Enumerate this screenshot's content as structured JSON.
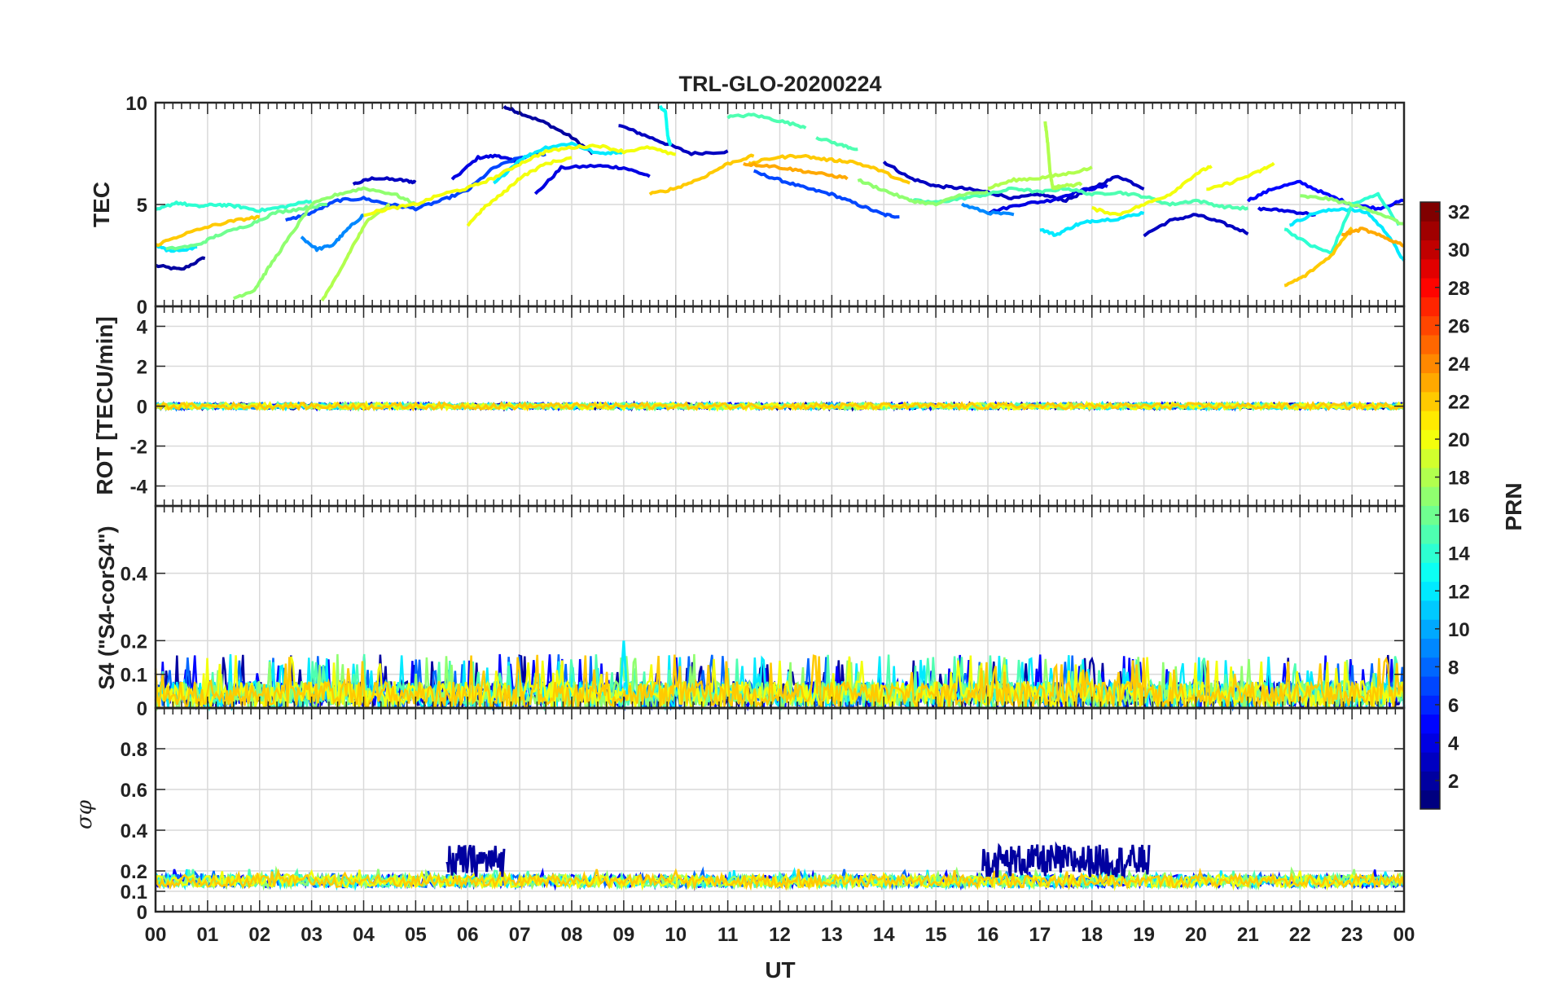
{
  "figure": {
    "title": "TRL-GLO-20200224",
    "xlabel": "UT",
    "x_tick_labels": [
      "00",
      "01",
      "02",
      "03",
      "04",
      "05",
      "06",
      "07",
      "08",
      "09",
      "10",
      "11",
      "12",
      "13",
      "14",
      "15",
      "16",
      "17",
      "18",
      "19",
      "20",
      "21",
      "22",
      "23",
      "00"
    ]
  },
  "chart_data": [
    {
      "type": "line",
      "title": "TRL-GLO-20200224",
      "ylabel": "TEC",
      "xlabel": "UT",
      "xlim": [
        0,
        24
      ],
      "ylim": [
        0,
        10
      ],
      "yticks": [
        0,
        5,
        10
      ],
      "y_tick_labels": [
        "0",
        "5",
        "10"
      ],
      "grid": true,
      "series": [
        {
          "name": "PRN 2",
          "prn": 2,
          "x": [
            0.0,
            0.5,
            0.95
          ],
          "y": [
            2.0,
            1.8,
            2.4
          ]
        },
        {
          "name": "PRN 3",
          "prn": 3,
          "x": [
            3.8,
            4.2,
            4.7,
            5.0
          ],
          "y": [
            6.0,
            6.3,
            6.2,
            6.1
          ]
        },
        {
          "name": "PRN 2",
          "prn": 2,
          "x": [
            6.7,
            7.0,
            7.5,
            8.0,
            8.4
          ],
          "y": [
            9.8,
            9.5,
            9.0,
            8.3,
            7.5
          ]
        },
        {
          "name": "PRN 4",
          "prn": 4,
          "x": [
            5.7,
            6.2,
            6.6,
            7.0
          ],
          "y": [
            6.2,
            7.3,
            7.4,
            7.0
          ]
        },
        {
          "name": "PRN 3",
          "prn": 3,
          "x": [
            8.9,
            9.3,
            9.8,
            10.3,
            11.0
          ],
          "y": [
            8.9,
            8.5,
            8.0,
            7.5,
            7.6
          ]
        },
        {
          "name": "PRN 4",
          "prn": 4,
          "x": [
            7.3,
            7.8,
            8.5,
            9.0,
            9.5
          ],
          "y": [
            5.5,
            6.8,
            6.9,
            6.8,
            6.4
          ]
        },
        {
          "name": "PRN 7",
          "prn": 7,
          "x": [
            11.5,
            12.0,
            12.5,
            13.0,
            13.5,
            14.0,
            14.3
          ],
          "y": [
            6.6,
            6.2,
            5.8,
            5.5,
            5.0,
            4.5,
            4.4
          ]
        },
        {
          "name": "PRN 3",
          "prn": 3,
          "x": [
            14.0,
            14.5,
            15.0,
            15.5,
            16.0,
            16.5,
            17.0,
            17.5,
            18.0,
            18.5,
            19.0
          ],
          "y": [
            7.1,
            6.3,
            5.9,
            5.8,
            5.6,
            5.3,
            5.5,
            5.2,
            5.8,
            6.4,
            5.8
          ]
        },
        {
          "name": "PRN 4",
          "prn": 4,
          "x": [
            16.0,
            16.6,
            17.2,
            17.8,
            18.3
          ],
          "y": [
            4.6,
            5.0,
            5.2,
            5.7,
            5.9
          ]
        },
        {
          "name": "PRN 3",
          "prn": 3,
          "x": [
            19.0,
            19.5,
            20.0,
            20.5,
            21.0
          ],
          "y": [
            3.5,
            4.2,
            4.5,
            4.1,
            3.6
          ]
        },
        {
          "name": "PRN 5",
          "prn": 5,
          "x": [
            21.0,
            21.5,
            22.0,
            22.5,
            23.0,
            23.5,
            24.0
          ],
          "y": [
            5.2,
            5.8,
            6.1,
            5.5,
            5.0,
            4.8,
            5.2
          ]
        },
        {
          "name": "PRN 4",
          "prn": 4,
          "x": [
            21.2,
            21.7,
            22.3
          ],
          "y": [
            4.8,
            4.7,
            4.5
          ]
        },
        {
          "name": "PRN 7",
          "prn": 7,
          "x": [
            2.5,
            3.0,
            3.5,
            4.0,
            4.5,
            5.0,
            5.5,
            6.0,
            6.5,
            7.0,
            7.5
          ],
          "y": [
            4.2,
            4.6,
            5.2,
            5.3,
            5.0,
            4.8,
            5.2,
            5.7,
            6.8,
            7.3,
            7.5
          ]
        },
        {
          "name": "PRN 9",
          "prn": 9,
          "x": [
            2.8,
            3.1,
            3.4,
            3.7,
            4.0
          ],
          "y": [
            3.4,
            2.8,
            3.0,
            3.8,
            4.5
          ]
        },
        {
          "name": "PRN 9",
          "prn": 9,
          "x": [
            15.5,
            16.0,
            16.5
          ],
          "y": [
            5.0,
            4.6,
            4.5
          ]
        },
        {
          "name": "PRN 12",
          "prn": 12,
          "x": [
            6.5,
            7.0,
            7.5,
            8.0,
            8.5,
            9.0
          ],
          "y": [
            6.0,
            7.2,
            7.8,
            8.0,
            7.5,
            7.6
          ]
        },
        {
          "name": "PRN 12",
          "prn": 12,
          "x": [
            17.0,
            17.3,
            17.7,
            18.0,
            18.5,
            19.0
          ],
          "y": [
            3.8,
            3.5,
            4.0,
            4.2,
            4.3,
            4.6
          ]
        },
        {
          "name": "PRN 12",
          "prn": 12,
          "x": [
            21.8,
            22.3,
            22.8,
            23.3,
            23.7,
            24.0
          ],
          "y": [
            4.0,
            4.6,
            4.8,
            4.6,
            3.5,
            2.2
          ]
        },
        {
          "name": "PRN 12",
          "prn": 12,
          "x": [
            0.0,
            0.3,
            0.8
          ],
          "y": [
            3.0,
            2.7,
            2.9
          ]
        },
        {
          "name": "PRN 13",
          "prn": 13,
          "x": [
            9.7,
            9.8,
            9.85,
            9.9
          ],
          "y": [
            9.8,
            9.6,
            8.3,
            7.9
          ]
        },
        {
          "name": "PRN 14",
          "prn": 14,
          "x": [
            0.0,
            0.4,
            0.8,
            1.2,
            1.6,
            2.0,
            2.5,
            3.0
          ],
          "y": [
            4.7,
            5.1,
            4.9,
            5.0,
            4.9,
            4.7,
            4.9,
            5.2
          ]
        },
        {
          "name": "PRN 14",
          "prn": 14,
          "x": [
            21.7,
            22.2,
            22.6,
            23.0,
            23.5,
            23.9
          ],
          "y": [
            3.8,
            3.0,
            2.6,
            5.0,
            5.5,
            4.0
          ]
        },
        {
          "name": "PRN 15",
          "prn": 15,
          "x": [
            11.0,
            11.5,
            12.0,
            12.5
          ],
          "y": [
            9.3,
            9.4,
            9.1,
            8.8
          ]
        },
        {
          "name": "PRN 15",
          "prn": 15,
          "x": [
            12.7,
            13.2,
            13.5
          ],
          "y": [
            8.3,
            7.9,
            7.7
          ]
        },
        {
          "name": "PRN 15",
          "prn": 15,
          "x": [
            14.5,
            15.0,
            15.5,
            16.0,
            16.5,
            17.0,
            17.5,
            18.0,
            18.5,
            19.0,
            19.5,
            20.0,
            20.5,
            21.0
          ],
          "y": [
            5.2,
            5.1,
            5.3,
            5.5,
            5.8,
            5.6,
            5.8,
            5.5,
            5.6,
            5.4,
            5.0,
            5.2,
            4.9,
            4.8
          ]
        },
        {
          "name": "PRN 16",
          "prn": 16,
          "x": [
            0.2,
            0.8,
            1.2,
            1.8,
            2.3,
            2.8,
            3.3
          ],
          "y": [
            2.8,
            3.0,
            3.5,
            4.0,
            4.6,
            4.8,
            5.0
          ]
        },
        {
          "name": "PRN 17",
          "prn": 17,
          "x": [
            1.5,
            1.9,
            2.2,
            2.6,
            3.0,
            3.5,
            4.0,
            4.6,
            5.0
          ],
          "y": [
            0.4,
            0.8,
            2.0,
            3.5,
            5.0,
            5.5,
            5.8,
            5.5,
            5.0
          ]
        },
        {
          "name": "PRN 17",
          "prn": 17,
          "x": [
            13.5,
            14.0,
            14.5,
            15.0,
            15.5,
            16.0
          ],
          "y": [
            6.2,
            5.7,
            5.2,
            5.0,
            5.5,
            5.6
          ]
        },
        {
          "name": "PRN 17",
          "prn": 17,
          "x": [
            22.0,
            22.5,
            23.0,
            23.5,
            24.0
          ],
          "y": [
            5.4,
            5.3,
            5.0,
            4.6,
            4.0
          ]
        },
        {
          "name": "PRN 18",
          "prn": 18,
          "x": [
            3.2,
            3.5,
            3.8,
            4.1,
            4.5
          ],
          "y": [
            0.3,
            1.5,
            3.0,
            4.3,
            5.0
          ]
        },
        {
          "name": "PRN 18",
          "prn": 18,
          "x": [
            16.0,
            16.5,
            17.0,
            17.5,
            18.0
          ],
          "y": [
            5.8,
            6.2,
            6.3,
            6.5,
            6.8
          ]
        },
        {
          "name": "PRN 18",
          "prn": 18,
          "x": [
            17.1,
            17.15,
            17.2,
            17.25,
            17.4,
            17.8
          ],
          "y": [
            9.1,
            8.0,
            6.5,
            5.8,
            5.9,
            6.0
          ]
        },
        {
          "name": "PRN 20",
          "prn": 20,
          "x": [
            4.0,
            4.5,
            5.0,
            5.5,
            6.0,
            6.5,
            7.0,
            7.5,
            8.0,
            8.5,
            9.0,
            9.5,
            10.0
          ],
          "y": [
            4.5,
            4.8,
            5.0,
            5.5,
            5.8,
            6.3,
            7.0,
            7.6,
            7.8,
            7.9,
            7.6,
            7.8,
            7.4
          ]
        },
        {
          "name": "PRN 20",
          "prn": 20,
          "x": [
            6.0,
            6.3,
            6.7,
            7.0,
            7.5,
            8.0
          ],
          "y": [
            4.0,
            4.8,
            5.6,
            6.3,
            7.0,
            7.3
          ]
        },
        {
          "name": "PRN 20",
          "prn": 20,
          "x": [
            18.0,
            18.5,
            19.0,
            19.5,
            20.0,
            20.3
          ],
          "y": [
            4.8,
            4.5,
            5.0,
            5.5,
            6.5,
            6.9
          ]
        },
        {
          "name": "PRN 20",
          "prn": 20,
          "x": [
            20.2,
            20.7,
            21.2,
            21.5
          ],
          "y": [
            5.7,
            6.1,
            6.6,
            7.0
          ]
        },
        {
          "name": "PRN 22",
          "prn": 22,
          "x": [
            0.0,
            0.5,
            1.0,
            1.5,
            2.0
          ],
          "y": [
            3.0,
            3.5,
            3.9,
            4.2,
            4.4
          ]
        },
        {
          "name": "PRN 22",
          "prn": 22,
          "x": [
            9.5,
            10.0,
            10.5,
            11.0,
            11.5
          ],
          "y": [
            5.5,
            5.8,
            6.3,
            7.0,
            7.4
          ]
        },
        {
          "name": "PRN 22",
          "prn": 22,
          "x": [
            11.4,
            11.9,
            12.4,
            12.9,
            13.4,
            13.9,
            14.5
          ],
          "y": [
            7.0,
            7.3,
            7.4,
            7.2,
            7.1,
            6.7,
            6.0
          ]
        },
        {
          "name": "PRN 22",
          "prn": 22,
          "x": [
            21.7,
            22.1,
            22.6,
            23.0
          ],
          "y": [
            1.0,
            1.5,
            2.5,
            3.9
          ]
        },
        {
          "name": "PRN 23",
          "prn": 23,
          "x": [
            11.3,
            11.8,
            12.3,
            12.8,
            13.3
          ],
          "y": [
            7.0,
            6.9,
            6.7,
            6.5,
            6.3
          ]
        },
        {
          "name": "PRN 23",
          "prn": 23,
          "x": [
            22.8,
            23.2,
            23.6,
            24.0
          ],
          "y": [
            3.5,
            3.8,
            3.4,
            3.0
          ]
        }
      ]
    },
    {
      "type": "line",
      "ylabel": "ROT [TECU/min]",
      "xlabel": "UT",
      "xlim": [
        0,
        24
      ],
      "ylim": [
        -5,
        5
      ],
      "yticks": [
        -4,
        -2,
        0,
        2,
        4
      ],
      "y_tick_labels": [
        "-4",
        "-2",
        "0",
        "2",
        "4"
      ],
      "grid": true,
      "description_of_series": "all PRNs fluctuate within about ±0.25 TECU/min around 0 over the full day",
      "band": {
        "center": 0,
        "amplitude": 0.25
      }
    },
    {
      "type": "line",
      "ylabel": "S4 (\"S4-corS4\")",
      "xlabel": "UT",
      "xlim": [
        0,
        24
      ],
      "ylim": [
        0,
        0.6
      ],
      "yticks": [
        0,
        0.1,
        0.2,
        0.4
      ],
      "y_tick_labels": [
        "0",
        "0.1",
        "0.2",
        "0.4"
      ],
      "grid": true,
      "band": {
        "min": 0.0,
        "typical_max": 0.1,
        "peak": 0.2,
        "peak_at_ut": 9.0
      }
    },
    {
      "type": "line",
      "ylabel": "σφ",
      "xlabel": "UT",
      "xlim": [
        0,
        24
      ],
      "ylim": [
        0,
        1.0
      ],
      "yticks": [
        0,
        0.1,
        0.2,
        0.4,
        0.6,
        0.8
      ],
      "y_tick_labels": [
        "0",
        "0.1",
        "0.2",
        "0.4",
        "0.6",
        "0.8"
      ],
      "grid": true,
      "baseline": {
        "min": 0.12,
        "max": 0.18
      },
      "enhancements": [
        {
          "prn": 2,
          "ut_start": 5.6,
          "ut_end": 6.7,
          "peak": 0.33
        },
        {
          "prn": 2,
          "ut_start": 15.9,
          "ut_end": 19.1,
          "peak": 0.33
        }
      ]
    }
  ],
  "colorbar": {
    "label": "PRN",
    "min": 1,
    "max": 32,
    "tick_labels": [
      "2",
      "4",
      "6",
      "8",
      "10",
      "12",
      "14",
      "16",
      "18",
      "20",
      "22",
      "24",
      "26",
      "28",
      "30",
      "32"
    ],
    "colormap": "jet"
  }
}
